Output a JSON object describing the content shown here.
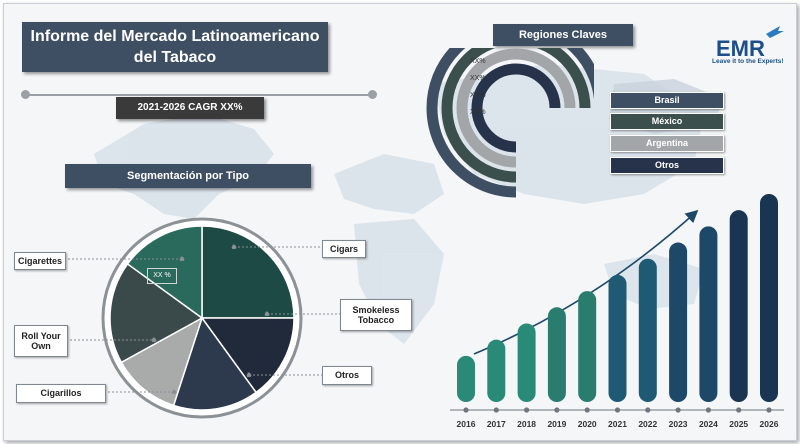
{
  "title": "Informe del Mercado Latinoamericano del Tabaco",
  "cagr_label": "2021-2026 CAGR XX%",
  "logo": {
    "text": "EMR",
    "tagline": "Leave it to the Experts!"
  },
  "colors": {
    "dark": "#3f4f63",
    "teal": "#2a7d6e",
    "navy": "#1f3a57"
  },
  "chart_data": [
    {
      "type": "pie",
      "title": "Segmentación por Tipo",
      "slices": [
        {
          "label": "Cigarettes",
          "value": 25,
          "color": "#1d4a44"
        },
        {
          "label": "Cigars",
          "value": 15,
          "color": "#212a3a"
        },
        {
          "label": "Smokeless Tobacco",
          "value": 15,
          "color": "#2d3a4e"
        },
        {
          "label": "Otros",
          "value": 12,
          "color": "#a9abab"
        },
        {
          "label": "Cigarillos",
          "value": 18,
          "color": "#3a4a4a"
        },
        {
          "label": "Roll Your Own",
          "value": 15,
          "color": "#2a6a5c"
        }
      ],
      "data_label": "XX %"
    },
    {
      "type": "bar",
      "title": "Regiones Claves",
      "series": [
        {
          "name": "Brasil",
          "value_label": "XX%",
          "color": "#3f4f63"
        },
        {
          "name": "México",
          "value_label": "XX%",
          "color": "#3b4f4c"
        },
        {
          "name": "Argentina",
          "value_label": "XX%",
          "color": "#a3a6a8"
        },
        {
          "name": "Otros",
          "value_label": "XX%",
          "color": "#26334a"
        }
      ]
    },
    {
      "type": "bar",
      "categories": [
        "2016",
        "2017",
        "2018",
        "2019",
        "2020",
        "2021",
        "2022",
        "2023",
        "2024",
        "2025",
        "2026"
      ],
      "values": [
        1,
        2,
        3,
        4,
        5,
        6,
        7,
        8,
        9,
        10,
        11
      ],
      "colors": [
        "#2a8a78",
        "#2a8a78",
        "#2a8a78",
        "#2a7d6e",
        "#2a7d6e",
        "#1f5a75",
        "#1f5a75",
        "#1e4868",
        "#1e4868",
        "#1a3552",
        "#1a3552"
      ]
    }
  ]
}
